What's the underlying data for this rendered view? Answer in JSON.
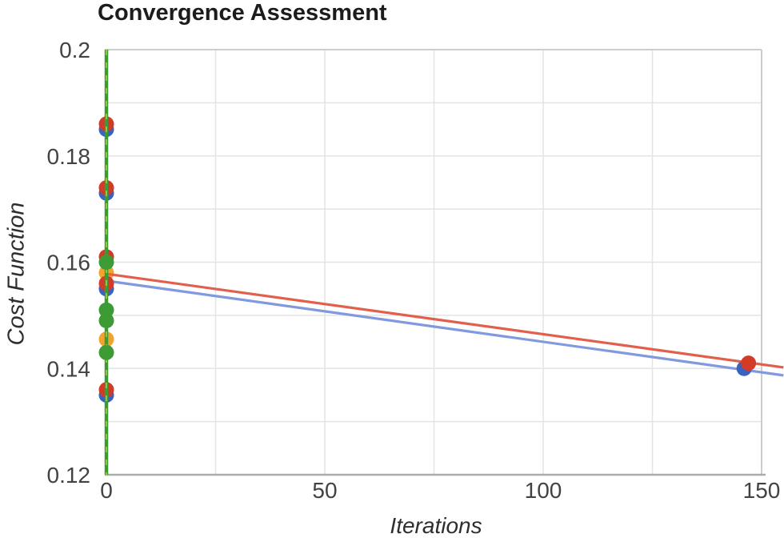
{
  "chart_data": {
    "type": "scatter",
    "title": "Convergence Assessment",
    "xlabel": "Iterations",
    "ylabel": "Cost Function",
    "xlim": [
      0,
      150
    ],
    "ylim": [
      0.12,
      0.2
    ],
    "grid": true,
    "legend": "none",
    "x_ticks": [
      {
        "value": 0,
        "label": "0"
      },
      {
        "value": 50,
        "label": "50"
      },
      {
        "value": 100,
        "label": "100"
      },
      {
        "value": 150,
        "label": "150"
      }
    ],
    "y_ticks": [
      {
        "value": 0.2,
        "label": "0.2"
      },
      {
        "value": 0.18,
        "label": "0.18"
      },
      {
        "value": 0.16,
        "label": "0.16"
      },
      {
        "value": 0.14,
        "label": "0.14"
      },
      {
        "value": 0.12,
        "label": "0.12"
      }
    ],
    "x_grid_step": 25,
    "y_grid_step": 0.01,
    "series": [
      {
        "name": "orange-series",
        "color": "#f1a42c",
        "layer": "below-lines",
        "points": [
          [
            0,
            0.158
          ],
          [
            0,
            0.1455
          ]
        ]
      },
      {
        "name": "blue-series",
        "color": "#3a63c0",
        "layer": "mid",
        "points": [
          [
            0,
            0.185
          ],
          [
            0,
            0.173
          ],
          [
            0,
            0.155
          ],
          [
            0,
            0.135
          ],
          [
            146,
            0.14
          ]
        ]
      },
      {
        "name": "red-series",
        "color": "#d23b28",
        "layer": "mid",
        "points": [
          [
            0,
            0.186
          ],
          [
            0,
            0.174
          ],
          [
            0,
            0.161
          ],
          [
            0,
            0.156
          ],
          [
            0,
            0.136
          ],
          [
            147,
            0.141
          ]
        ]
      },
      {
        "name": "green-series",
        "color": "#3d9b35",
        "layer": "top",
        "points": [
          [
            0,
            0.16
          ],
          [
            0,
            0.151
          ],
          [
            0,
            0.149
          ],
          [
            0,
            0.143
          ]
        ]
      }
    ],
    "trend_lines": [
      {
        "name": "blue-trend-line",
        "color": "#8099df",
        "points": [
          [
            0,
            0.1565
          ],
          [
            155,
            0.1387
          ]
        ]
      },
      {
        "name": "red-trend-line",
        "color": "#e0604b",
        "points": [
          [
            0,
            0.1578
          ],
          [
            155,
            0.1402
          ]
        ]
      }
    ],
    "vertical_line": {
      "name": "green-vertical-line",
      "x": 0,
      "from": 0.12,
      "to": 0.2,
      "color": "#3b9a33",
      "dash_color": "#a6c449"
    }
  },
  "colors": {
    "gridline": "#e4e4e4",
    "plot_border": "#cdcdcd",
    "axis_line": "#aaaaaa",
    "tick_text": "#424242"
  }
}
